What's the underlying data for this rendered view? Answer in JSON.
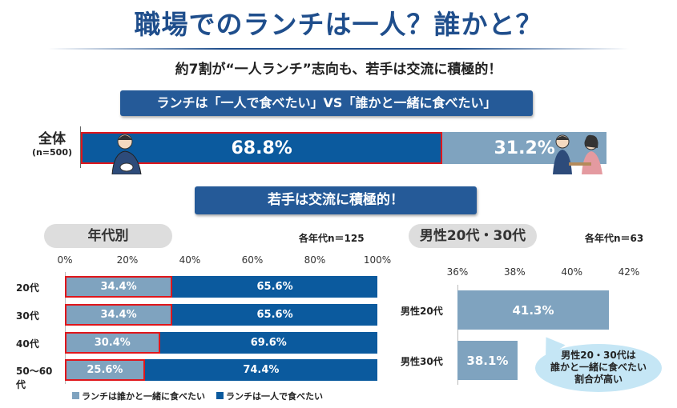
{
  "title": "職場でのランチは一人？誰かと？",
  "subtitle": "約7割が“一人ランチ”志向も、若手は交流に積極的！",
  "banner1": "ランチは「一人で食べたい」VS「誰かと一緒に食べたい」",
  "banner2": "若手は交流に積極的！",
  "colors": {
    "alone": "#0b5a9e",
    "together": "#7fa3bf",
    "highlight": "#e0161b",
    "title": "#1f4e8c"
  },
  "chart_data": [
    {
      "type": "bar",
      "title": "全体",
      "label": "全体",
      "n_label": "(n=500)",
      "categories": [
        "全体"
      ],
      "series": [
        {
          "name": "ランチは一人で食べたい",
          "values": [
            68.8
          ]
        },
        {
          "name": "ランチは誰かと一緒に食べたい",
          "values": [
            31.2
          ]
        }
      ],
      "value_labels": [
        "68.8%",
        "31.2%"
      ],
      "stacked": true
    },
    {
      "type": "bar",
      "title": "年代別",
      "n_label": "各年代n＝125",
      "stacked": true,
      "categories": [
        "20代",
        "30代",
        "40代",
        "50～60代"
      ],
      "xticks": [
        "0%",
        "20%",
        "40%",
        "60%",
        "80%",
        "100%"
      ],
      "xlim": [
        0,
        100
      ],
      "series": [
        {
          "name": "ランチは誰かと一緒に食べたい",
          "values": [
            34.4,
            34.4,
            30.4,
            25.6
          ],
          "labels": [
            "34.4%",
            "34.4%",
            "30.4%",
            "25.6%"
          ]
        },
        {
          "name": "ランチは一人で食べたい",
          "values": [
            65.6,
            65.6,
            69.6,
            74.4
          ],
          "labels": [
            "65.6%",
            "65.6%",
            "69.6%",
            "74.4%"
          ]
        }
      ],
      "legend": [
        "ランチは誰かと一緒に食べたい",
        "ランチは一人で食べたい"
      ],
      "legend_position": "bottom"
    },
    {
      "type": "bar",
      "title": "男性20代・30代",
      "n_label": "各年代n＝63",
      "categories": [
        "男性20代",
        "男性30代"
      ],
      "xticks": [
        "36%",
        "38%",
        "40%",
        "42%"
      ],
      "xlim": [
        36,
        42
      ],
      "values": [
        41.3,
        38.1
      ],
      "labels": [
        "41.3%",
        "38.1%"
      ],
      "annotation": [
        "男性20・30代は",
        "誰かと一緒に食べたい",
        "割合が高い"
      ]
    }
  ]
}
